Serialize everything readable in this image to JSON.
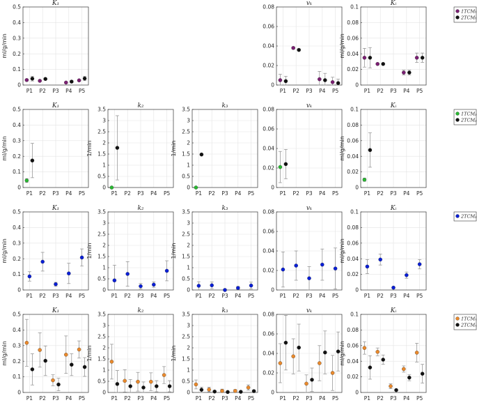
{
  "colors": {
    "1TCMfk": "#7a1f72",
    "1TCMpk": "#29b832",
    "2TCMfk": "#111111",
    "2TCMpk": "#0a1fd6",
    "1TCMrk": "#e9892c",
    "2TCMrk": "#111111"
  },
  "categories": [
    "P1",
    "P2",
    "P3",
    "P4",
    "P5"
  ],
  "chart_data": [
    {
      "type": "scatter",
      "row": 0,
      "col": 0,
      "title": "K₁",
      "ylabel": "ml/g/min",
      "ylim": [
        0,
        0.5
      ],
      "yticks": [
        0,
        0.1,
        0.2,
        0.3,
        0.4,
        0.5
      ],
      "tick_labels": [
        "0",
        "0.1",
        "0.2",
        "0.3",
        "0.4",
        "0.5"
      ],
      "series": [
        {
          "name": "1TCMₕk",
          "color_key": "1TCMfk",
          "values": [
            0.032,
            0.027,
            null,
            0.016,
            0.03
          ],
          "err": [
            0.006,
            0.004,
            null,
            0.003,
            0.005
          ]
        },
        {
          "name": "2TCMₕk",
          "color_key": "2TCMfk",
          "values": [
            0.041,
            0.039,
            null,
            0.022,
            0.042
          ],
          "err": [
            0.015,
            0.005,
            null,
            0.006,
            0.014
          ]
        }
      ]
    },
    {
      "type": "scatter",
      "row": 0,
      "col": 3,
      "title": "vₖ",
      "ylabel": "",
      "ylim": [
        0,
        0.08
      ],
      "yticks": [
        0,
        0.02,
        0.04,
        0.06,
        0.08
      ],
      "tick_labels": [
        "0",
        "0.02",
        "0.04",
        "0.06",
        "0.08"
      ],
      "series": [
        {
          "name": "1TCMₕk",
          "color_key": "1TCMfk",
          "values": [
            0.005,
            0.038,
            null,
            0.006,
            0.003
          ],
          "err": [
            0.006,
            0.001,
            null,
            0.008,
            0.005
          ]
        },
        {
          "name": "2TCMₕk",
          "color_key": "2TCMfk",
          "values": [
            0.004,
            0.036,
            null,
            0.005,
            0.002
          ],
          "err": [
            0.005,
            0.001,
            null,
            0.007,
            0.004
          ]
        }
      ]
    },
    {
      "type": "scatter",
      "row": 0,
      "col": 4,
      "title": "Kᵢ",
      "ylabel": "ml/g/min",
      "ylim": [
        0,
        0.1
      ],
      "yticks": [
        0,
        0.02,
        0.04,
        0.06,
        0.08,
        0.1
      ],
      "tick_labels": [
        "0",
        "0.02",
        "0.04",
        "0.06",
        "0.08",
        "0.1"
      ],
      "series": [
        {
          "name": "1TCMₕk",
          "color_key": "1TCMfk",
          "values": [
            0.035,
            0.027,
            null,
            0.016,
            0.035
          ],
          "err": [
            0.012,
            0.001,
            null,
            0.003,
            0.006
          ]
        },
        {
          "name": "2TCMₕk",
          "color_key": "2TCMfk",
          "values": [
            0.035,
            0.027,
            null,
            0.016,
            0.035
          ],
          "err": [
            0.013,
            0.001,
            null,
            0.003,
            0.006
          ]
        }
      ]
    },
    {
      "type": "scatter",
      "row": 1,
      "col": 0,
      "title": "K₁",
      "ylabel": "ml/g/min",
      "ylim": [
        0,
        0.5
      ],
      "yticks": [
        0,
        0.1,
        0.2,
        0.3,
        0.4,
        0.5
      ],
      "tick_labels": [
        "0",
        "0.1",
        "0.2",
        "0.3",
        "0.4",
        "0.5"
      ],
      "series": [
        {
          "name": "1TCMₚk",
          "color_key": "1TCMpk",
          "values": [
            0.045,
            null,
            null,
            null,
            null
          ],
          "err": [
            0.012,
            null,
            null,
            null,
            null
          ]
        },
        {
          "name": "2TCMₚk",
          "color_key": "2TCMfk",
          "values": [
            0.173,
            null,
            null,
            null,
            null
          ],
          "err": [
            0.11,
            null,
            null,
            null,
            null
          ]
        }
      ]
    },
    {
      "type": "scatter",
      "row": 1,
      "col": 1,
      "title": "k₂",
      "ylabel": "1/min",
      "ylim": [
        0,
        3.5
      ],
      "yticks": [
        0,
        0.5,
        1,
        1.5,
        2,
        2.5,
        3,
        3.5
      ],
      "tick_labels": [
        "0",
        "0.5",
        "1",
        "1.5",
        "2",
        "2.5",
        "3",
        "3.5"
      ],
      "series": [
        {
          "name": "1TCMₚk",
          "color_key": "1TCMpk",
          "values": [
            0.0,
            null,
            null,
            null,
            null
          ],
          "err": [
            0.02,
            null,
            null,
            null,
            null
          ]
        },
        {
          "name": "2TCMₚk",
          "color_key": "2TCMfk",
          "values": [
            1.78,
            null,
            null,
            null,
            null
          ],
          "err": [
            1.44,
            null,
            null,
            null,
            null
          ]
        }
      ]
    },
    {
      "type": "scatter",
      "row": 1,
      "col": 2,
      "title": "k₃",
      "ylabel": "1/min",
      "ylim": [
        0,
        3.5
      ],
      "yticks": [
        0,
        0.5,
        1,
        1.5,
        2,
        2.5,
        3,
        3.5
      ],
      "tick_labels": [
        "0",
        "0.5",
        "1",
        "1.5",
        "2",
        "2.5",
        "3",
        "3.5"
      ],
      "series": [
        {
          "name": "1TCMₚk",
          "color_key": "1TCMpk",
          "values": [
            0.0,
            null,
            null,
            null,
            null
          ],
          "err": [
            0.02,
            null,
            null,
            null,
            null
          ]
        },
        {
          "name": "2TCMₚk",
          "color_key": "2TCMfk",
          "values": [
            1.48,
            null,
            null,
            null,
            null
          ],
          "err": [
            0.02,
            null,
            null,
            null,
            null
          ]
        }
      ]
    },
    {
      "type": "scatter",
      "row": 1,
      "col": 3,
      "title": "vₖ",
      "ylabel": "",
      "ylim": [
        0,
        0.08
      ],
      "yticks": [
        0,
        0.02,
        0.04,
        0.06,
        0.08
      ],
      "tick_labels": [
        "0",
        "0.02",
        "0.04",
        "0.06",
        "0.08"
      ],
      "series": [
        {
          "name": "1TCMₚk",
          "color_key": "1TCMpk",
          "values": [
            0.021,
            null,
            null,
            null,
            null
          ],
          "err": [
            0.016,
            null,
            null,
            null,
            null
          ]
        },
        {
          "name": "2TCMₚk",
          "color_key": "2TCMfk",
          "values": [
            0.024,
            null,
            null,
            null,
            null
          ],
          "err": [
            0.015,
            null,
            null,
            null,
            null
          ]
        }
      ]
    },
    {
      "type": "scatter",
      "row": 1,
      "col": 4,
      "title": "Kᵢ",
      "ylabel": "ml/g/min",
      "ylim": [
        0,
        0.1
      ],
      "yticks": [
        0,
        0.02,
        0.04,
        0.06,
        0.08,
        0.1
      ],
      "tick_labels": [
        "0",
        "0.02",
        "0.04",
        "0.06",
        "0.08",
        "0.1"
      ],
      "series": [
        {
          "name": "1TCMₚk",
          "color_key": "1TCMpk",
          "values": [
            0.01,
            null,
            null,
            null,
            null
          ],
          "err": [
            0.002,
            null,
            null,
            null,
            null
          ]
        },
        {
          "name": "2TCMₚk",
          "color_key": "2TCMfk",
          "values": [
            0.048,
            null,
            null,
            null,
            null
          ],
          "err": [
            0.022,
            null,
            null,
            null,
            null
          ]
        }
      ]
    },
    {
      "type": "scatter",
      "row": 2,
      "col": 0,
      "title": "K₁",
      "ylabel": "ml/g/min",
      "ylim": [
        0,
        0.5
      ],
      "yticks": [
        0,
        0.1,
        0.2,
        0.3,
        0.4,
        0.5
      ],
      "tick_labels": [
        "0",
        "0.1",
        "0.2",
        "0.3",
        "0.4",
        "0.5"
      ],
      "series": [
        {
          "name": "2TCMₚk",
          "color_key": "2TCMpk",
          "values": [
            0.087,
            0.181,
            0.037,
            0.106,
            0.208
          ],
          "err": [
            0.03,
            0.06,
            0.012,
            0.065,
            0.055
          ]
        }
      ]
    },
    {
      "type": "scatter",
      "row": 2,
      "col": 1,
      "title": "k₂",
      "ylabel": "1/min",
      "ylim": [
        0,
        3.5
      ],
      "yticks": [
        0,
        0.5,
        1,
        1.5,
        2,
        2.5,
        3,
        3.5
      ],
      "tick_labels": [
        "0",
        "0.5",
        "1",
        "1.5",
        "2",
        "2.5",
        "3",
        "3.5"
      ],
      "series": [
        {
          "name": "2TCMₚk",
          "color_key": "2TCMpk",
          "values": [
            0.43,
            0.72,
            0.17,
            0.24,
            0.86
          ],
          "err": [
            0.68,
            0.55,
            0.12,
            0.12,
            0.45
          ]
        }
      ]
    },
    {
      "type": "scatter",
      "row": 2,
      "col": 2,
      "title": "k₃",
      "ylabel": "1/min",
      "ylim": [
        0,
        3.5
      ],
      "yticks": [
        0,
        0.5,
        1,
        1.5,
        2,
        2.5,
        3,
        3.5
      ],
      "tick_labels": [
        "0",
        "0.5",
        "1",
        "1.5",
        "2",
        "2.5",
        "3",
        "3.5"
      ],
      "series": [
        {
          "name": "2TCMₚk",
          "color_key": "2TCMpk",
          "values": [
            0.19,
            0.21,
            0.0,
            0.09,
            0.2
          ],
          "err": [
            0.18,
            0.15,
            0.04,
            0.07,
            0.15
          ]
        }
      ]
    },
    {
      "type": "scatter",
      "row": 2,
      "col": 3,
      "title": "vₖ",
      "ylabel": "",
      "ylim": [
        0,
        0.08
      ],
      "yticks": [
        0,
        0.02,
        0.04,
        0.06,
        0.08
      ],
      "tick_labels": [
        "0",
        "0.02",
        "0.04",
        "0.06",
        "0.08"
      ],
      "series": [
        {
          "name": "2TCMₚk",
          "color_key": "2TCMpk",
          "values": [
            0.021,
            0.025,
            0.012,
            0.026,
            0.022
          ],
          "err": [
            0.018,
            0.015,
            0.012,
            0.016,
            0.021
          ]
        }
      ]
    },
    {
      "type": "scatter",
      "row": 2,
      "col": 4,
      "title": "Kᵢ",
      "ylabel": "ml/g/min",
      "ylim": [
        0,
        0.1
      ],
      "yticks": [
        0,
        0.02,
        0.04,
        0.06,
        0.08,
        0.1
      ],
      "tick_labels": [
        "0",
        "0.02",
        "0.04",
        "0.06",
        "0.08",
        "0.1"
      ],
      "series": [
        {
          "name": "2TCMₚk",
          "color_key": "2TCMpk",
          "values": [
            0.03,
            0.039,
            0.003,
            0.019,
            0.033
          ],
          "err": [
            0.009,
            0.007,
            0.001,
            0.004,
            0.006
          ]
        }
      ]
    },
    {
      "type": "scatter",
      "row": 3,
      "col": 0,
      "title": "K₁",
      "ylabel": "ml/g/min",
      "ylim": [
        0,
        0.5
      ],
      "yticks": [
        0,
        0.1,
        0.2,
        0.3,
        0.4,
        0.5
      ],
      "tick_labels": [
        "0",
        "0.1",
        "0.2",
        "0.3",
        "0.4",
        "0.5"
      ],
      "series": [
        {
          "name": "1TCMᵣk",
          "color_key": "1TCMrk",
          "values": [
            0.318,
            0.272,
            0.078,
            0.242,
            0.275
          ],
          "err": [
            0.15,
            0.11,
            0.035,
            0.12,
            0.055
          ]
        },
        {
          "name": "2TCMᵣk",
          "color_key": "2TCMrk",
          "values": [
            0.148,
            0.203,
            0.051,
            0.178,
            0.163
          ],
          "err": [
            0.1,
            0.095,
            0.04,
            0.07,
            0.06
          ]
        }
      ]
    },
    {
      "type": "scatter",
      "row": 3,
      "col": 1,
      "title": "k₂",
      "ylabel": "1/min",
      "ylim": [
        0,
        3.5
      ],
      "yticks": [
        0,
        0.5,
        1,
        1.5,
        2,
        2.5,
        3,
        3.5
      ],
      "tick_labels": [
        "0",
        "0.5",
        "1",
        "1.5",
        "2",
        "2.5",
        "3",
        "3.5"
      ],
      "series": [
        {
          "name": "1TCMᵣk",
          "color_key": "1TCMrk",
          "values": [
            1.38,
            0.52,
            0.48,
            0.48,
            0.78
          ],
          "err": [
            0.78,
            0.5,
            0.42,
            0.4,
            0.38
          ]
        },
        {
          "name": "2TCMᵣk",
          "color_key": "2TCMrk",
          "values": [
            0.38,
            0.28,
            0.22,
            0.28,
            0.28
          ],
          "err": [
            0.6,
            0.3,
            0.25,
            0.25,
            0.25
          ]
        }
      ]
    },
    {
      "type": "scatter",
      "row": 3,
      "col": 2,
      "title": "k₃",
      "ylabel": "1/min",
      "ylim": [
        0,
        3.5
      ],
      "yticks": [
        0,
        0.5,
        1,
        1.5,
        2,
        2.5,
        3,
        3.5
      ],
      "tick_labels": [
        "0",
        "0.5",
        "1",
        "1.5",
        "2",
        "2.5",
        "3",
        "3.5"
      ],
      "series": [
        {
          "name": "1TCMᵣk",
          "color_key": "1TCMrk",
          "values": [
            0.36,
            0.13,
            0.07,
            0.07,
            0.22
          ],
          "err": [
            0.2,
            0.1,
            0.08,
            0.06,
            0.12
          ]
        },
        {
          "name": "2TCMᵣk",
          "color_key": "2TCMrk",
          "values": [
            0.12,
            0.04,
            0.02,
            0.03,
            0.06
          ],
          "err": [
            0.12,
            0.04,
            0.02,
            0.03,
            0.05
          ]
        }
      ]
    },
    {
      "type": "scatter",
      "row": 3,
      "col": 3,
      "title": "vₖ",
      "ylabel": "",
      "ylim": [
        0,
        0.08
      ],
      "yticks": [
        0,
        0.02,
        0.04,
        0.06,
        0.08
      ],
      "tick_labels": [
        "0",
        "0.02",
        "0.04",
        "0.06",
        "0.08"
      ],
      "series": [
        {
          "name": "1TCMᵣk",
          "color_key": "1TCMrk",
          "values": [
            0.03,
            0.037,
            0.009,
            0.03,
            0.02
          ],
          "err": [
            0.02,
            0.018,
            0.009,
            0.018,
            0.018
          ]
        },
        {
          "name": "2TCMᵣk",
          "color_key": "2TCMrk",
          "values": [
            0.051,
            0.046,
            0.013,
            0.041,
            0.042
          ],
          "err": [
            0.028,
            0.024,
            0.012,
            0.022,
            0.02
          ]
        }
      ]
    },
    {
      "type": "scatter",
      "row": 3,
      "col": 4,
      "title": "Kᵢ",
      "ylabel": "ml/g/min",
      "ylim": [
        0,
        0.1
      ],
      "yticks": [
        0,
        0.02,
        0.04,
        0.06,
        0.08,
        0.1
      ],
      "tick_labels": [
        "0",
        "0.02",
        "0.04",
        "0.06",
        "0.08",
        "0.1"
      ],
      "series": [
        {
          "name": "1TCMᵣk",
          "color_key": "1TCMrk",
          "values": [
            0.057,
            0.052,
            0.008,
            0.03,
            0.051
          ],
          "err": [
            0.008,
            0.005,
            0.003,
            0.004,
            0.012
          ]
        },
        {
          "name": "2TCMᵣk",
          "color_key": "2TCMrk",
          "values": [
            0.032,
            0.042,
            0.003,
            0.019,
            0.024
          ],
          "err": [
            0.015,
            0.006,
            0.001,
            0.004,
            0.012
          ]
        }
      ]
    }
  ],
  "legends": [
    {
      "row": 0,
      "entries": [
        {
          "label": "1TCMₕk",
          "color_key": "1TCMfk"
        },
        {
          "label": "2TCMₕk",
          "color_key": "2TCMfk"
        }
      ]
    },
    {
      "row": 1,
      "entries": [
        {
          "label": "1TCMₚk",
          "color_key": "1TCMpk"
        },
        {
          "label": "2TCMₚk",
          "color_key": "2TCMfk"
        }
      ]
    },
    {
      "row": 2,
      "entries": [
        {
          "label": "2TCMₚk",
          "color_key": "2TCMpk"
        }
      ]
    },
    {
      "row": 3,
      "entries": [
        {
          "label": "1TCMᵣk",
          "color_key": "1TCMrk"
        },
        {
          "label": "2TCMᵣk",
          "color_key": "2TCMrk"
        }
      ]
    }
  ]
}
